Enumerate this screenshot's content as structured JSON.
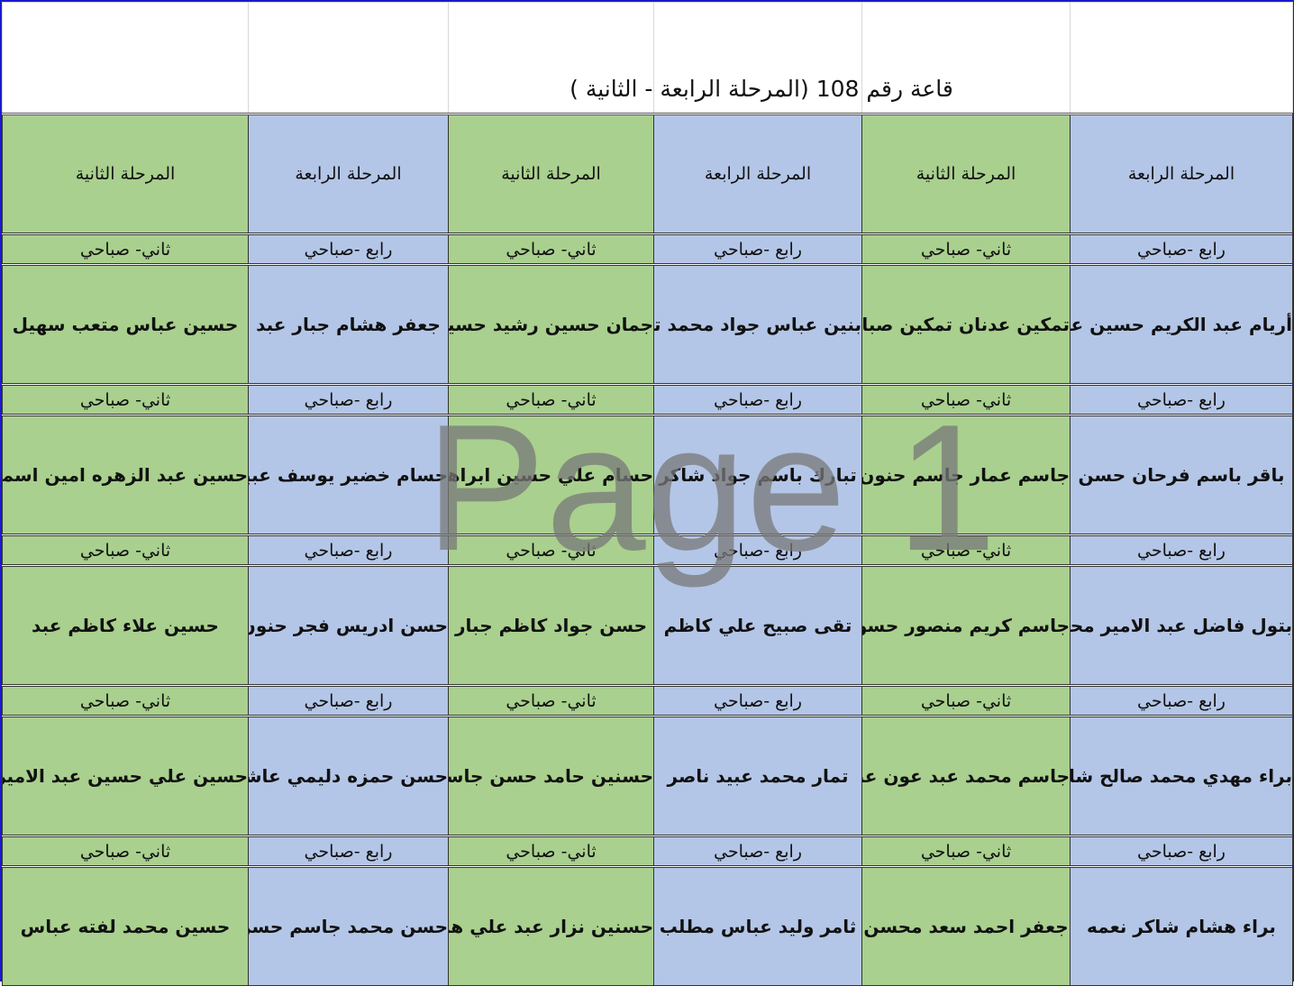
{
  "title": "قاعة رقم 108 (المرحلة الرابعة - الثانية )",
  "watermark": "Page 1",
  "colors": {
    "fourth_stage": "#b4c6e7",
    "second_stage": "#a9d08e"
  },
  "columns": [
    {
      "stage": "المرحلة الرابعة",
      "shift": "رابع -صباحي",
      "color": "blue",
      "names": [
        "أريام عبد الكريم حسين علي",
        "باقر باسم فرحان حسن",
        "بتول فاضل عبد الامير محمد",
        "براء مهدي محمد صالح شاكر",
        "براء هشام شاكر نعمه"
      ]
    },
    {
      "stage": "المرحلة الثانية",
      "shift": "ثاني- صباحي",
      "color": "green",
      "names": [
        "تمكين عدنان تمكين صبار",
        "جاسم عمار جاسم حنون",
        "جاسم كريم منصور حسون",
        "جاسم محمد عبد عون عبد",
        "جعفر احمد سعد محسن"
      ]
    },
    {
      "stage": "المرحلة الرابعة",
      "shift": "رابع -صباحي",
      "color": "blue",
      "names": [
        "بنين عباس جواد محمد تقي",
        "تبارك باسم جواد شاكر",
        "تقى صبيح علي كاظم",
        "تمار محمد عبيد ناصر",
        "ثامر وليد عباس مطلب"
      ]
    },
    {
      "stage": "المرحلة الثانية",
      "shift": "ثاني- صباحي",
      "color": "green",
      "names": [
        "جمان حسين رشيد حسين",
        "حسام علي حسين ابراهيم",
        "حسن جواد كاظم جبار",
        "حسنين حامد حسن جاسم",
        "حسنين نزار عبد علي هادي"
      ]
    },
    {
      "stage": "المرحلة الرابعة",
      "shift": "رابع -صباحي",
      "color": "blue",
      "names": [
        "جعفر هشام جبار عبد",
        "حسام خضير يوسف عبيد",
        "حسن ادريس فجر حنون",
        "حسن حمزه دليمي عاشور",
        "حسن محمد جاسم حسن"
      ]
    },
    {
      "stage": "المرحلة الثانية",
      "shift": "ثاني- صباحي",
      "color": "green",
      "names": [
        "حسين عباس متعب سهيل",
        "حسين عبد الزهره امين اسماعيل",
        "حسين علاء كاظم عبد",
        "حسين علي حسين عبد الامير",
        "حسين محمد لفته عباس"
      ]
    }
  ]
}
